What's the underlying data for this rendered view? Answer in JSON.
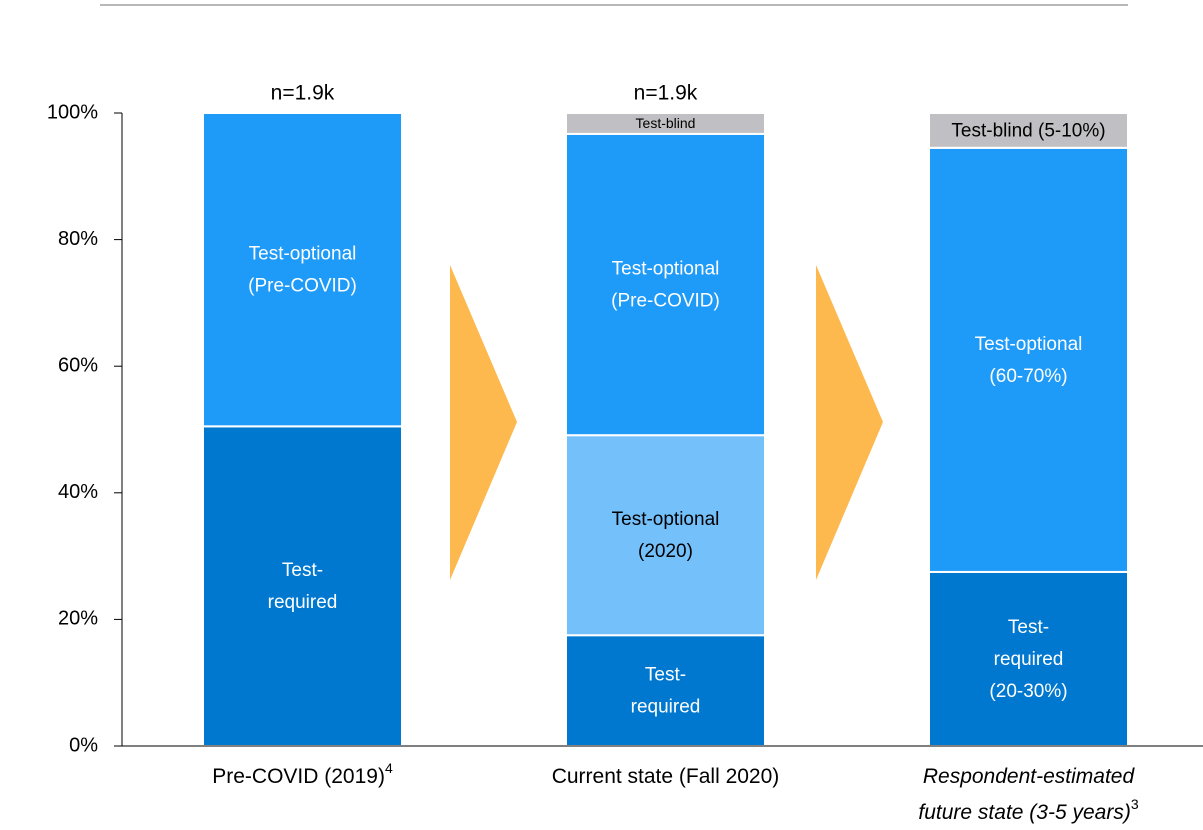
{
  "chart_data": {
    "type": "stacked_bar",
    "categories": [
      [
        "Pre-COVID (2019)"
      ],
      [
        "Current state (Fall 2020)"
      ],
      [
        "Respondent-estimated",
        "future state (3-5 years)"
      ]
    ],
    "category_notes": [
      "4",
      null,
      "3"
    ],
    "category_italic": [
      false,
      false,
      true
    ],
    "annotations": [
      "n=1.9k",
      "n=1.9k",
      null
    ],
    "series": [
      {
        "color": "#0078d0",
        "text_color": "#ffffff",
        "values": [
          50.5,
          17.5,
          27.5
        ],
        "labels": [
          [
            "Test-",
            "required"
          ],
          [
            "Test-",
            "required"
          ],
          [
            "Test-",
            "required",
            "(20-30%)"
          ]
        ]
      },
      {
        "color": "#74c0fb",
        "text_color": "#000000",
        "values": [
          null,
          31.6,
          null
        ],
        "labels": [
          null,
          [
            "Test-optional",
            "(2020)"
          ],
          null
        ]
      },
      {
        "color": "#1e9af8",
        "text_color": "#ffffff",
        "values": [
          49.5,
          47.6,
          67.0
        ],
        "labels": [
          [
            "Test-optional",
            "(Pre-COVID)"
          ],
          [
            "Test-optional",
            "(Pre-COVID)"
          ],
          [
            "Test-optional",
            "(60-70%)"
          ]
        ]
      },
      {
        "color": "#c0c0c4",
        "text_color": "#000000",
        "values": [
          null,
          3.3,
          5.5
        ],
        "labels": [
          null,
          [
            "Test-blind"
          ],
          [
            "Test-blind (5-10%)"
          ]
        ]
      }
    ],
    "ylim": [
      0,
      100
    ],
    "yticks": [
      {
        "value": 0,
        "label": "0%"
      },
      {
        "value": 20,
        "label": "20%"
      },
      {
        "value": 40,
        "label": "40%"
      },
      {
        "value": 60,
        "label": "60%"
      },
      {
        "value": 80,
        "label": "80%"
      },
      {
        "value": 100,
        "label": "100%"
      }
    ]
  }
}
